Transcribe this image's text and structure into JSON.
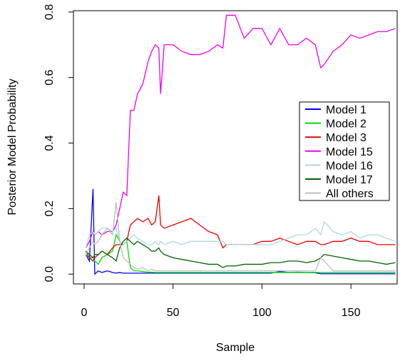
{
  "chart_data": {
    "type": "line",
    "x_label": "Sample",
    "y_label": "Posterior Model Probability",
    "x": [
      1,
      3,
      5,
      6,
      8,
      10,
      13,
      16,
      18,
      20,
      22,
      24,
      26,
      28,
      30,
      33,
      36,
      38,
      40,
      42,
      43,
      45,
      50,
      55,
      60,
      65,
      70,
      75,
      78,
      80,
      85,
      90,
      95,
      100,
      105,
      110,
      115,
      120,
      125,
      130,
      133,
      135,
      140,
      145,
      150,
      155,
      160,
      165,
      170,
      175
    ],
    "xlim": [
      -6,
      176
    ],
    "xticks": [
      0,
      50,
      100,
      150
    ],
    "ylim": [
      -0.03,
      0.804
    ],
    "yticks": [
      {
        "value": 0,
        "label": "0.0"
      },
      0.2,
      0.4,
      0.6,
      0.8
    ],
    "legend_position": "right",
    "series": [
      {
        "name": "Model 1",
        "color": "#0000ff",
        "values": [
          0.06,
          0.04,
          0.26,
          0.0,
          0.01,
          0.005,
          0.01,
          0.005,
          0.003,
          0.005,
          0.003,
          0.003,
          0.003,
          0.003,
          0.003,
          0.003,
          0.003,
          0.003,
          0.003,
          0.003,
          0.003,
          0.003,
          0.003,
          0.003,
          0.003,
          0.003,
          0.003,
          0.003,
          0.003,
          0.003,
          0.003,
          0.003,
          0.003,
          0.003,
          0.003,
          0.008,
          0.005,
          0.006,
          0.005,
          0.004,
          0.001,
          0.001,
          0.001,
          0.001,
          0.001,
          0.001,
          0.001,
          0.001,
          0.001,
          0.001
        ]
      },
      {
        "name": "Model 2",
        "color": "#00dd00",
        "values": [
          0.06,
          0.05,
          0.05,
          0.04,
          0.03,
          0.05,
          0.06,
          0.07,
          0.12,
          0.1,
          0.09,
          0.1,
          0.02,
          0.01,
          0.01,
          0.008,
          0.006,
          0.006,
          0.005,
          0.005,
          0.005,
          0.005,
          0.005,
          0.005,
          0.005,
          0.005,
          0.005,
          0.005,
          0.005,
          0.005,
          0.005,
          0.005,
          0.005,
          0.005,
          0.005,
          0.005,
          0.005,
          0.005,
          0.005,
          0.005,
          0.005,
          0.005,
          0.005,
          0.005,
          0.005,
          0.005,
          0.005,
          0.005,
          0.005,
          0.005
        ]
      },
      {
        "name": "Model 3",
        "color": "#ee0000",
        "values": [
          0.07,
          0.05,
          0.04,
          0.05,
          0.06,
          0.07,
          0.06,
          0.08,
          0.09,
          0.09,
          0.09,
          0.1,
          0.15,
          0.16,
          0.17,
          0.16,
          0.17,
          0.15,
          0.16,
          0.24,
          0.15,
          0.14,
          0.15,
          0.16,
          0.17,
          0.15,
          0.13,
          0.12,
          0.08,
          0.09,
          0.09,
          0.09,
          0.09,
          0.1,
          0.1,
          0.11,
          0.1,
          0.09,
          0.1,
          0.1,
          0.09,
          0.09,
          0.1,
          0.1,
          0.11,
          0.1,
          0.1,
          0.09,
          0.09,
          0.09
        ]
      },
      {
        "name": "Model 15",
        "color": "#ee00ee",
        "values": [
          0.08,
          0.1,
          0.13,
          0.12,
          0.13,
          0.12,
          0.13,
          0.13,
          0.15,
          0.2,
          0.25,
          0.24,
          0.5,
          0.5,
          0.55,
          0.58,
          0.65,
          0.68,
          0.7,
          0.69,
          0.55,
          0.7,
          0.7,
          0.68,
          0.67,
          0.67,
          0.68,
          0.7,
          0.69,
          0.79,
          0.79,
          0.72,
          0.75,
          0.75,
          0.7,
          0.75,
          0.7,
          0.7,
          0.72,
          0.7,
          0.63,
          0.64,
          0.68,
          0.7,
          0.73,
          0.72,
          0.73,
          0.74,
          0.74,
          0.75
        ]
      },
      {
        "name": "Model 16",
        "color": "#add8e6",
        "values": [
          0.08,
          0.12,
          0.13,
          0.12,
          0.13,
          0.14,
          0.14,
          0.13,
          0.14,
          0.1,
          0.09,
          0.1,
          0.11,
          0.12,
          0.11,
          0.1,
          0.09,
          0.09,
          0.1,
          0.09,
          0.1,
          0.09,
          0.1,
          0.09,
          0.1,
          0.1,
          0.1,
          0.1,
          0.1,
          0.09,
          0.09,
          0.09,
          0.09,
          0.09,
          0.09,
          0.1,
          0.11,
          0.12,
          0.12,
          0.14,
          0.12,
          0.16,
          0.13,
          0.12,
          0.13,
          0.11,
          0.12,
          0.12,
          0.11,
          0.1
        ]
      },
      {
        "name": "Model 17",
        "color": "#006400",
        "values": [
          0.07,
          0.06,
          0.05,
          0.06,
          0.06,
          0.07,
          0.06,
          0.05,
          0.04,
          0.08,
          0.1,
          0.11,
          0.1,
          0.09,
          0.1,
          0.09,
          0.08,
          0.07,
          0.07,
          0.08,
          0.07,
          0.06,
          0.05,
          0.045,
          0.04,
          0.035,
          0.03,
          0.03,
          0.02,
          0.025,
          0.025,
          0.03,
          0.03,
          0.03,
          0.035,
          0.035,
          0.04,
          0.04,
          0.035,
          0.04,
          0.05,
          0.06,
          0.055,
          0.05,
          0.045,
          0.04,
          0.04,
          0.035,
          0.03,
          0.035
        ]
      },
      {
        "name": "All others",
        "color": "#bebebe",
        "values": [
          0.06,
          0.08,
          0.1,
          0.09,
          0.1,
          0.12,
          0.14,
          0.12,
          0.22,
          0.1,
          0.05,
          0.04,
          0.03,
          0.02,
          0.015,
          0.02,
          0.01,
          0.015,
          0.01,
          0.01,
          0.01,
          0.01,
          0.01,
          0.01,
          0.01,
          0.01,
          0.01,
          0.01,
          0.01,
          0.01,
          0.01,
          0.01,
          0.01,
          0.01,
          0.01,
          0.01,
          0.01,
          0.01,
          0.01,
          0.01,
          0.05,
          0.04,
          0.01,
          0.01,
          0.01,
          0.01,
          0.01,
          0.01,
          0.01,
          0.01
        ]
      }
    ]
  }
}
